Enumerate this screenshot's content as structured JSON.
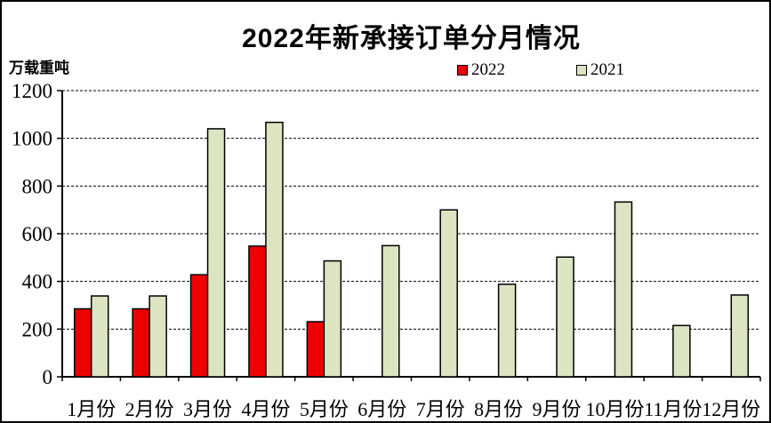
{
  "page": {
    "title": "2022年新承接订单分月情况",
    "unit_label": "万载重吨"
  },
  "legend": [
    {
      "label": "2022",
      "color": "#ee0000"
    },
    {
      "label": "2021",
      "color": "#dde4c2"
    }
  ],
  "chart_data": {
    "type": "bar",
    "title": "2022年新承接订单分月情况",
    "ylabel": "万载重吨",
    "xlabel": "",
    "categories": [
      "1月份",
      "2月份",
      "3月份",
      "4月份",
      "5月份",
      "6月份",
      "7月份",
      "8月份",
      "9月份",
      "10月份",
      "11月份",
      "12月份"
    ],
    "series": [
      {
        "name": "2022",
        "color": "#ee0000",
        "values": [
          285,
          285,
          428,
          548,
          231,
          null,
          null,
          null,
          null,
          null,
          null,
          null
        ]
      },
      {
        "name": "2021",
        "color": "#dde4c2",
        "values": [
          339,
          339,
          1040,
          1067,
          486,
          550,
          700,
          388,
          502,
          733,
          215,
          343
        ]
      }
    ],
    "ylim": [
      0,
      1200
    ],
    "ytick_step": 200,
    "yticks": [
      0,
      200,
      400,
      600,
      800,
      1000,
      1200
    ],
    "grid": "horizontal-dashed",
    "legend_position": "top-center",
    "bar_outline_color": "#000000"
  }
}
